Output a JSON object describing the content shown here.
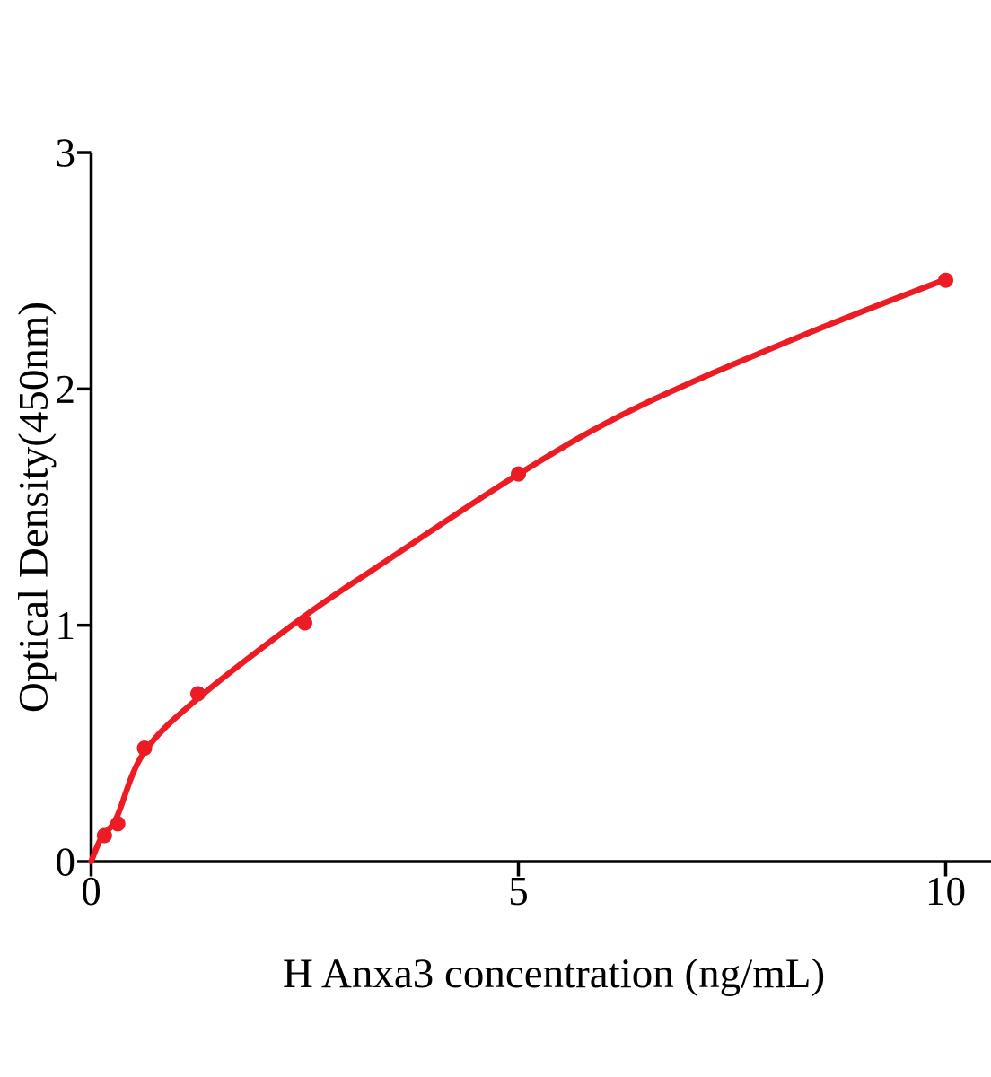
{
  "figure": {
    "background": "#ffffff",
    "axis_color": "#000000",
    "accent_color": "#ED1C24"
  },
  "chart_data": {
    "type": "scatter",
    "title": "",
    "xlabel": "H Anxa3 concentration (ng/mL)",
    "ylabel": "Optical Density(450nm)",
    "xlim": [
      0,
      10.55
    ],
    "ylim": [
      0,
      3
    ],
    "xticks": [
      0,
      5,
      10
    ],
    "yticks": [
      0,
      1,
      2,
      3
    ],
    "grid": false,
    "legend_position": "none",
    "marker_color": "#ED1C24",
    "line_color": "#ED1C24",
    "points": [
      {
        "x": 0.156,
        "y": 0.11
      },
      {
        "x": 0.3125,
        "y": 0.16
      },
      {
        "x": 0.625,
        "y": 0.48
      },
      {
        "x": 1.25,
        "y": 0.71
      },
      {
        "x": 2.5,
        "y": 1.01
      },
      {
        "x": 5,
        "y": 1.64
      },
      {
        "x": 10,
        "y": 2.46
      }
    ],
    "fit_curve": [
      {
        "x": 0,
        "y": 0.0
      },
      {
        "x": 0.126,
        "y": 0.106
      },
      {
        "x": 0.294,
        "y": 0.183
      },
      {
        "x": 0.609,
        "y": 0.456
      },
      {
        "x": 1.229,
        "y": 0.684
      },
      {
        "x": 2.479,
        "y": 1.034
      },
      {
        "x": 3.35,
        "y": 1.247
      },
      {
        "x": 5.0,
        "y": 1.639
      },
      {
        "x": 6.4,
        "y": 1.924
      },
      {
        "x": 8.39,
        "y": 2.236
      },
      {
        "x": 10.0,
        "y": 2.464
      }
    ]
  }
}
